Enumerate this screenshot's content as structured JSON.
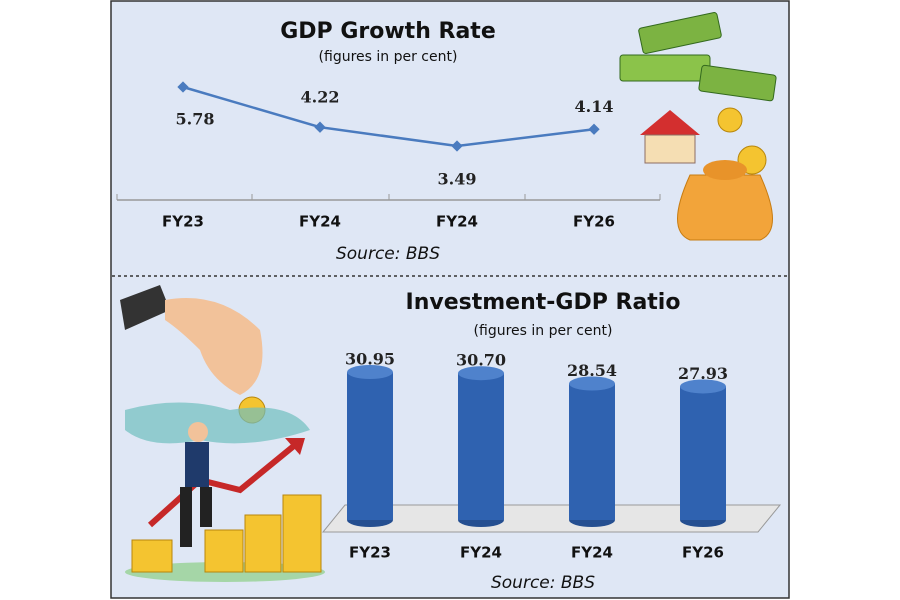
{
  "chart_data": [
    {
      "type": "line",
      "title": "GDP Growth Rate",
      "subtitle": "(figures in per cent)",
      "categories": [
        "FY23",
        "FY24",
        "FY24",
        "FY26"
      ],
      "values": [
        5.78,
        4.22,
        3.49,
        4.14
      ],
      "color": "#4a7bbf",
      "source": "Source: BBS"
    },
    {
      "type": "bar",
      "title": "Investment-GDP Ratio",
      "subtitle": "(figures in per cent)",
      "categories": [
        "FY23",
        "FY24",
        "FY24",
        "FY26"
      ],
      "values": [
        30.95,
        30.7,
        28.54,
        27.93
      ],
      "value_labels": [
        "30.95",
        "30.70",
        "28.54",
        "27.93"
      ],
      "color": "#2f62b0",
      "source": "Source: BBS"
    }
  ]
}
